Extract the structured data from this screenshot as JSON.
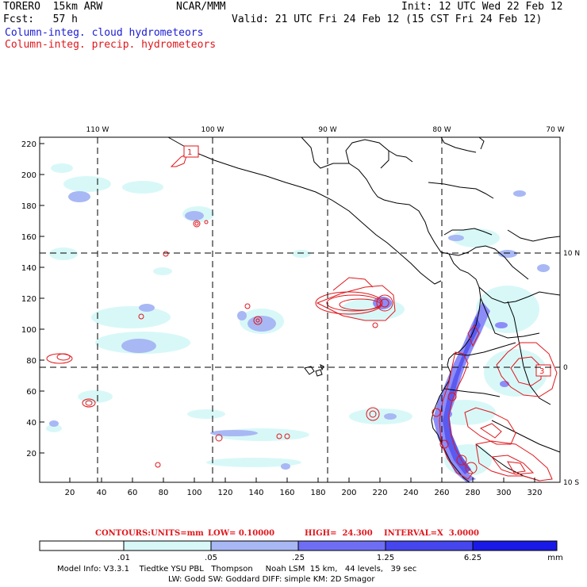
{
  "header": {
    "model": "TORERO  15km ARW",
    "org": "NCAR/MMM",
    "init": "Init: 12 UTC Wed 22 Feb 12",
    "fcst": "Fcst:   57 h",
    "valid": "Valid: 21 UTC Fri 24 Feb 12 (15 CST Fri 24 Feb 12)",
    "field1": "Column-integ. cloud hydrometeors",
    "field2": "Column-integ. precip. hydrometeors"
  },
  "map": {
    "lon_labels": [
      "110 W",
      "100 W",
      "90 W",
      "80 W",
      "70 W"
    ],
    "lat_labels": [
      "10 N",
      "0",
      "10 S"
    ],
    "y_ticks": [
      "220",
      "200",
      "180",
      "160",
      "140",
      "120",
      "100",
      "80",
      "60",
      "40",
      "20"
    ],
    "x_ticks": [
      "20",
      "40",
      "60",
      "80",
      "100",
      "120",
      "140",
      "160",
      "180",
      "200",
      "220",
      "240",
      "260",
      "280",
      "300",
      "320"
    ],
    "highs": [
      "1",
      "3"
    ],
    "colors": {
      "cloud": "#8c8cf8",
      "precip": "#e0161b",
      "grid": "#000000"
    }
  },
  "contours": {
    "label": "CONTOURS:",
    "units": "UNITS=mm",
    "low": "LOW= 0.10000",
    "high": "HIGH=  24.300",
    "interval": "INTERVAL=X  3.0000"
  },
  "colorbar": {
    "labels": [
      ".01",
      ".05",
      ".25",
      "1.25",
      "6.25"
    ],
    "unit": "mm",
    "colors": [
      "#ffffff",
      "#d8f8f8",
      "#a8c8f0",
      "#8c8cf8",
      "#6060f0",
      "#3a3af0",
      "#1a1ae8"
    ]
  },
  "footer": {
    "line1": "Model Info: V3.3.1    Tiedtke YSU PBL   Thompson     Noah LSM  15 km,   44 levels,   39 sec",
    "line2": "LW: Godd SW: Goddard DIFF: simple KM: 2D Smagor"
  }
}
